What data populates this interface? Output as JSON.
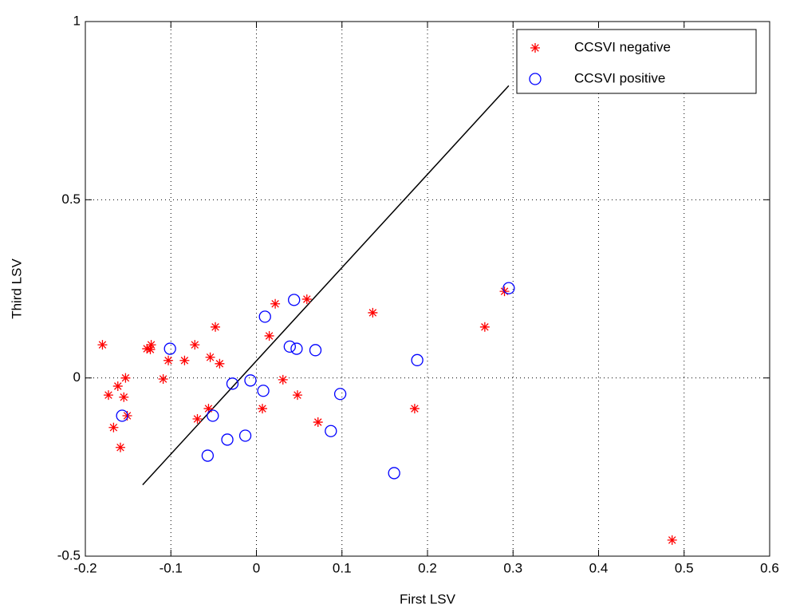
{
  "chart_data": {
    "type": "scatter",
    "x_label": "First LSV",
    "y_label": "Third LSV",
    "xlim": [
      -0.2,
      0.6
    ],
    "ylim": [
      -0.5,
      1
    ],
    "xticks": [
      -0.2,
      -0.1,
      0,
      0.1,
      0.2,
      0.3,
      0.4,
      0.5,
      0.6
    ],
    "yticks": [
      -0.5,
      0,
      0.5,
      1
    ],
    "grid": true,
    "legend": "northeast",
    "series": [
      {
        "name": "CCSVI negative",
        "color": "#ff0000",
        "marker": "star",
        "x": [
          -0.18,
          -0.173,
          -0.167,
          -0.162,
          -0.159,
          -0.155,
          -0.153,
          -0.151,
          -0.128,
          -0.124,
          -0.123,
          -0.109,
          -0.103,
          -0.084,
          -0.072,
          -0.069,
          -0.056,
          -0.054,
          -0.048,
          -0.043,
          0.007,
          0.015,
          0.022,
          0.031,
          0.048,
          0.059,
          0.072,
          0.136,
          0.185,
          0.267,
          0.29,
          0.486
        ],
        "values": [
          0.093,
          -0.048,
          -0.139,
          -0.023,
          -0.195,
          -0.054,
          0.0,
          -0.106,
          0.082,
          0.08,
          0.093,
          -0.003,
          0.049,
          0.049,
          0.093,
          -0.115,
          -0.086,
          0.058,
          0.143,
          0.04,
          -0.086,
          0.118,
          0.208,
          -0.005,
          -0.048,
          0.221,
          -0.124,
          0.183,
          -0.086,
          0.143,
          0.243,
          -0.455
        ]
      },
      {
        "name": "CCSVI positive",
        "color": "#0000ff",
        "marker": "circle",
        "x": [
          -0.157,
          -0.101,
          -0.057,
          -0.051,
          -0.034,
          -0.028,
          -0.013,
          -0.007,
          0.008,
          0.01,
          0.039,
          0.044,
          0.047,
          0.069,
          0.087,
          0.098,
          0.161,
          0.188,
          0.295
        ],
        "values": [
          -0.106,
          0.082,
          -0.218,
          -0.106,
          -0.173,
          -0.016,
          -0.162,
          -0.007,
          -0.036,
          0.172,
          0.088,
          0.219,
          0.082,
          0.078,
          -0.149,
          -0.045,
          -0.267,
          0.05,
          0.252
        ]
      }
    ],
    "line": {
      "color": "#000000",
      "x": [
        -0.133,
        0.295
      ],
      "y": [
        -0.3,
        0.82
      ]
    }
  }
}
